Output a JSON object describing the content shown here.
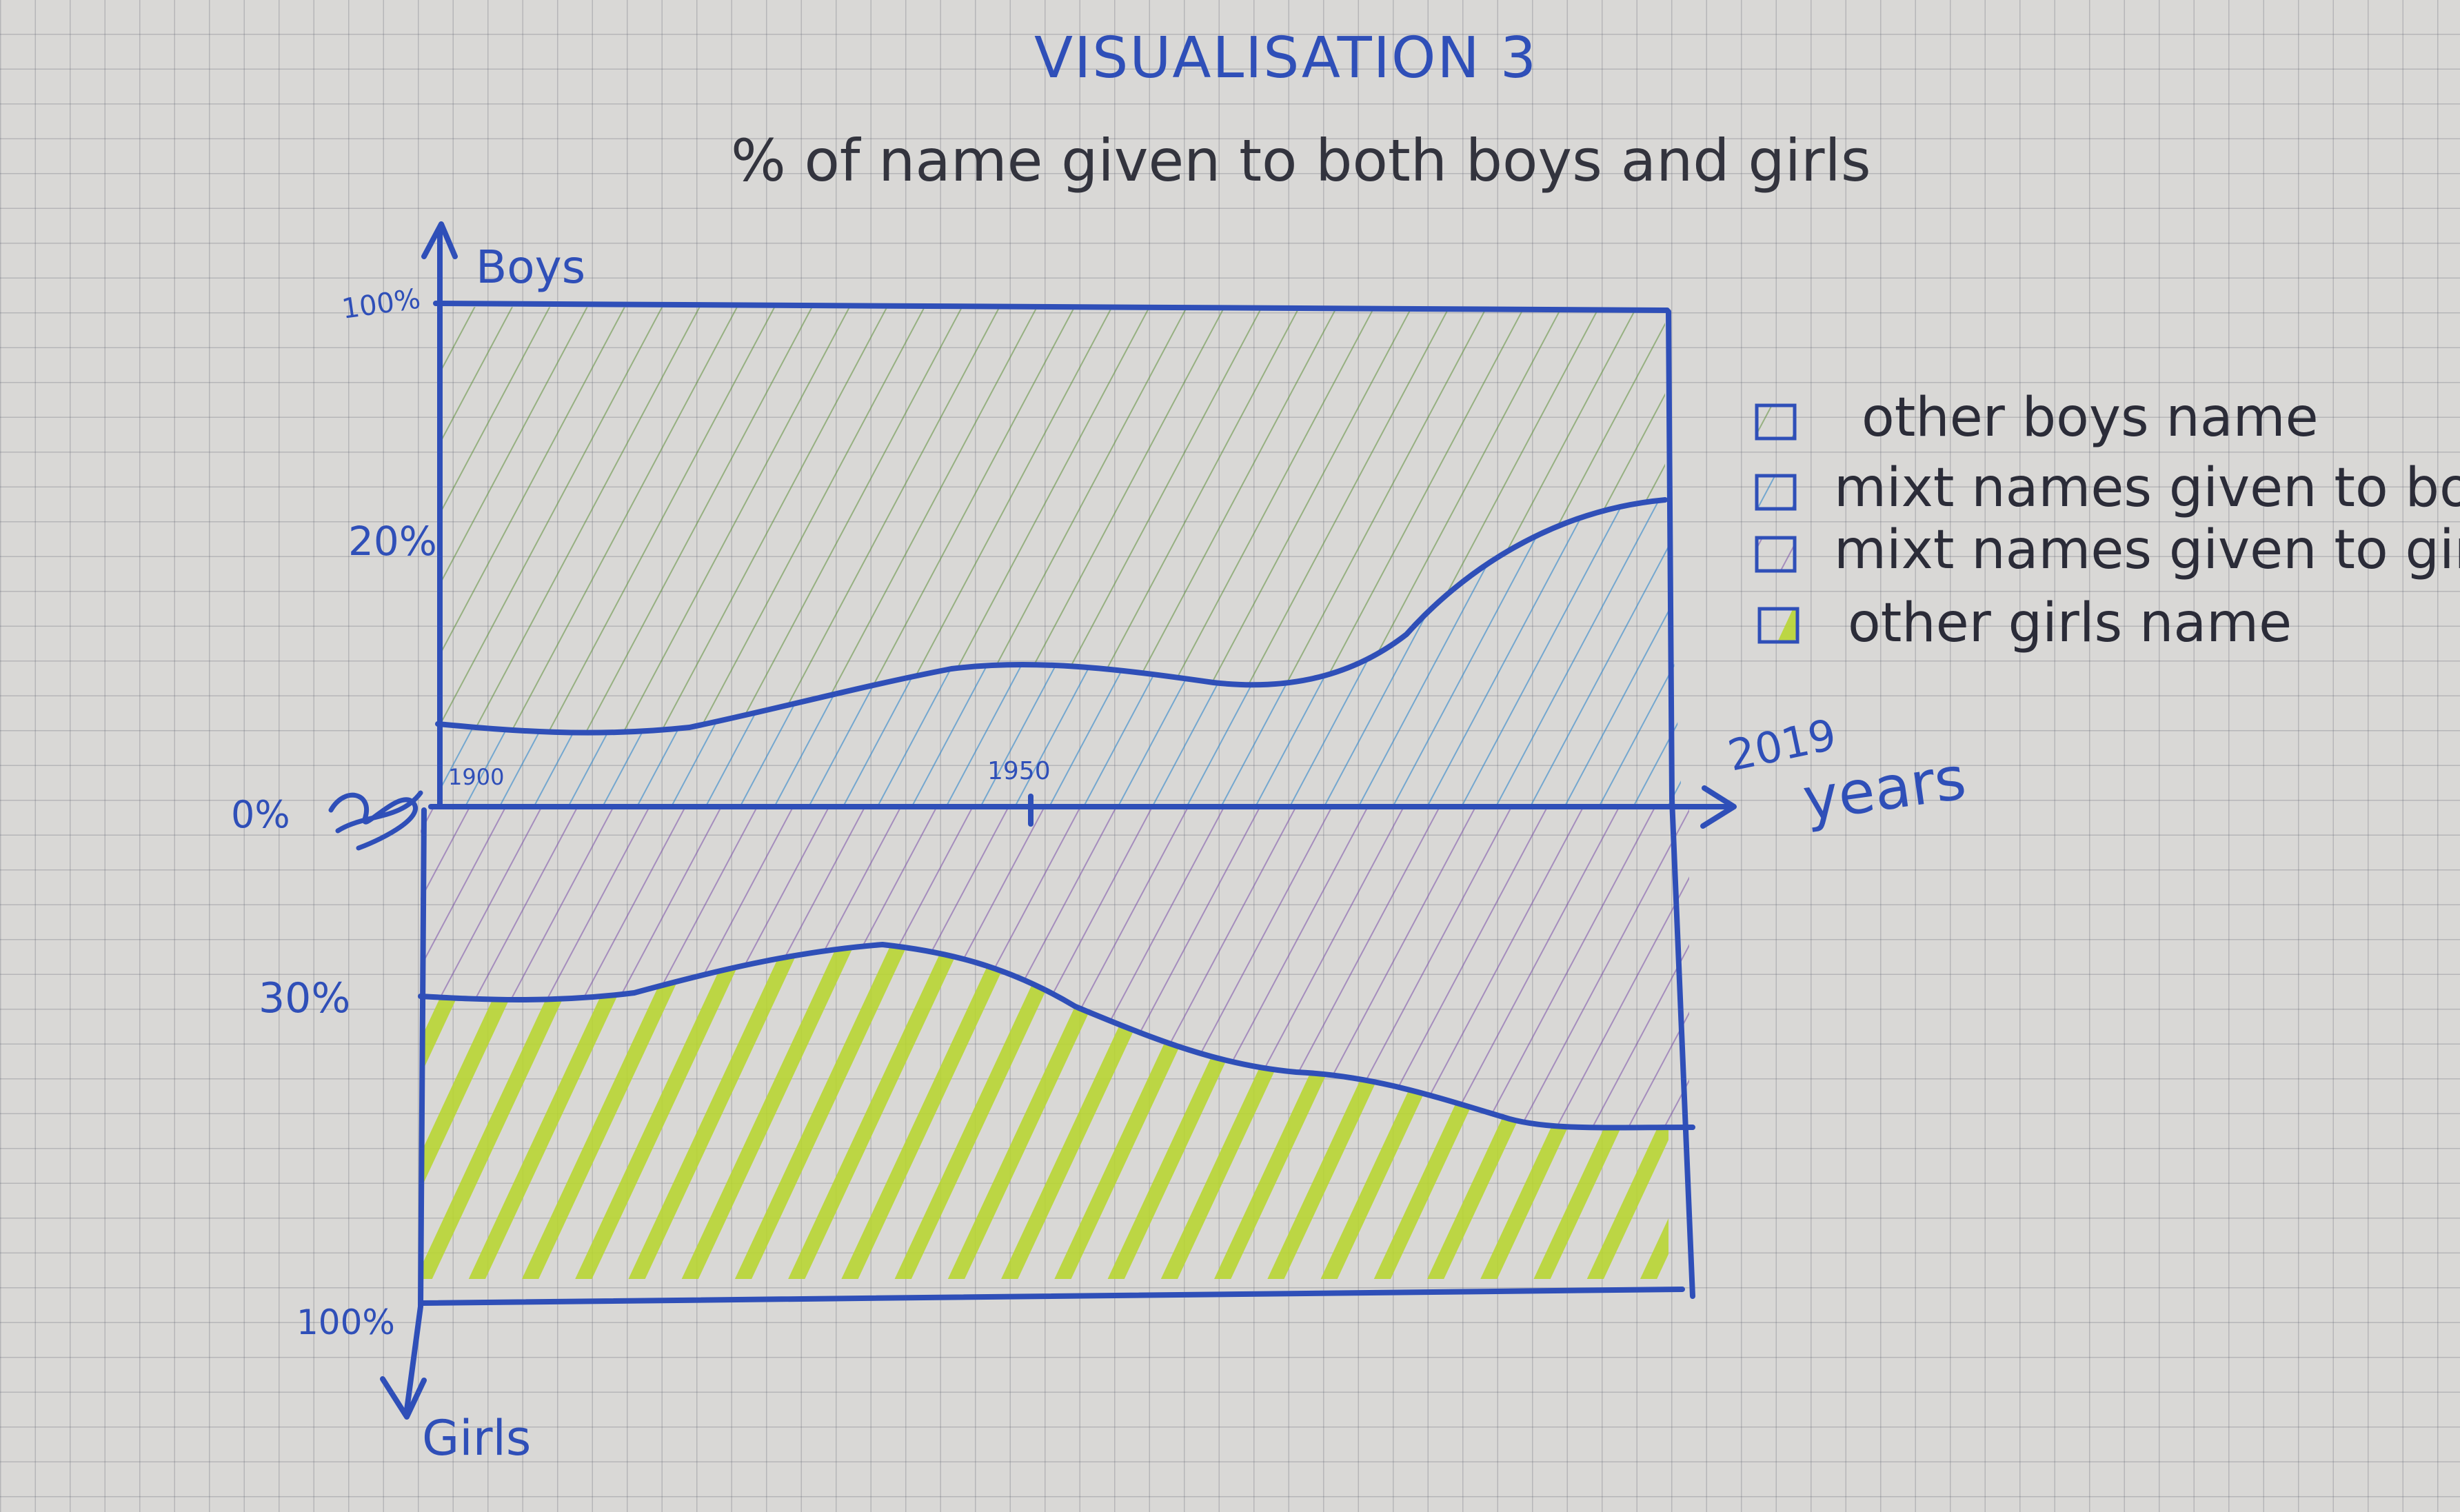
{
  "header": {
    "heading": "VISUALISATION 3",
    "subtitle": "% of name given to both boys and girls"
  },
  "axes": {
    "top_label": "Boys",
    "bottom_label": "Girls",
    "x_label": "years",
    "x_end_tick": "2019",
    "x_ticks": [
      "1900",
      "1950"
    ],
    "boys_ticks": [
      "100%",
      "20%",
      "0%"
    ],
    "girls_ticks": [
      "30%",
      "100%"
    ]
  },
  "legend": {
    "items": [
      {
        "label": "other boys name",
        "color": "#5e8f3a"
      },
      {
        "label": "mixt names given to boys",
        "color": "#2f86c9"
      },
      {
        "label": "mixt names given to girls",
        "color": "#7a4fa8"
      },
      {
        "label": "other girls name",
        "color": "#b8d62a"
      }
    ]
  },
  "colors": {
    "ink": "#2f4fb8",
    "other_boys": "#5e8f3a",
    "mixt_boys": "#2f86c9",
    "mixt_girls": "#7a4fa8",
    "other_girls": "#b8d62a"
  }
}
